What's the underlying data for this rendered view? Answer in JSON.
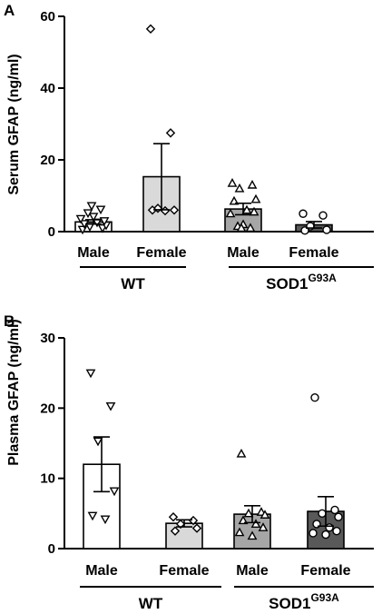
{
  "chart_data": [
    {
      "panel": "A",
      "type": "bar",
      "ylabel": "Serum GFAP (ng/ml)",
      "ylim": [
        0,
        60
      ],
      "yticks": [
        "0",
        "20",
        "40",
        "60"
      ],
      "categories": [
        "Male",
        "Female",
        "Male",
        "Female"
      ],
      "groups": [
        {
          "label": "WT",
          "label_sup": ""
        },
        {
          "label": "SOD1",
          "label_sup": "G93A"
        }
      ],
      "bars": [
        {
          "category": "Male",
          "group": "WT",
          "mean": 2.7,
          "sem": 0.6,
          "fill": "#ffffff",
          "marker": "triangle-down",
          "points": [
            0.6,
            1.0,
            1.4,
            1.8,
            2.2,
            2.6,
            3.0,
            3.6,
            4.2,
            5.2,
            6.2,
            7.2
          ]
        },
        {
          "category": "Female",
          "group": "WT",
          "mean": 15.3,
          "sem": 9.2,
          "fill": "#d9d9d9",
          "marker": "diamond",
          "points": [
            56.5,
            27.5,
            6.5,
            6.0,
            6.0,
            5.8
          ]
        },
        {
          "category": "Male",
          "group": "SOD1G93A",
          "mean": 6.3,
          "sem": 1.6,
          "fill": "#a6a6a6",
          "marker": "triangle-up",
          "points": [
            13.5,
            13.0,
            12.0,
            9.0,
            8.5,
            6.0,
            5.5,
            5.0,
            2.0,
            1.5,
            1.0,
            1.0
          ]
        },
        {
          "category": "Female",
          "group": "SOD1G93A",
          "mean": 1.9,
          "sem": 0.9,
          "fill": "#595959",
          "marker": "circle",
          "points": [
            5.0,
            4.5,
            1.5,
            0.5,
            0.3
          ]
        }
      ]
    },
    {
      "panel": "B",
      "type": "bar",
      "ylabel": "Plasma GFAP (ng/ml)",
      "ylim": [
        0,
        30
      ],
      "yticks": [
        "0",
        "10",
        "20",
        "30"
      ],
      "categories": [
        "Male",
        "Female",
        "Male",
        "Female"
      ],
      "groups": [
        {
          "label": "WT",
          "label_sup": ""
        },
        {
          "label": "SOD1",
          "label_sup": "G93A"
        }
      ],
      "bars": [
        {
          "category": "Male",
          "group": "WT",
          "mean": 12.0,
          "sem": 3.9,
          "fill": "#ffffff",
          "marker": "triangle-down",
          "points": [
            25.0,
            20.3,
            15.3,
            8.2,
            4.7,
            4.2
          ]
        },
        {
          "category": "Female",
          "group": "WT",
          "mean": 3.6,
          "sem": 0.5,
          "fill": "#d9d9d9",
          "marker": "diamond",
          "points": [
            4.5,
            4.0,
            3.5,
            2.9,
            2.5
          ]
        },
        {
          "category": "Male",
          "group": "SOD1G93A",
          "mean": 4.9,
          "sem": 1.2,
          "fill": "#a6a6a6",
          "marker": "triangle-up",
          "points": [
            13.5,
            5.2,
            5.0,
            4.8,
            4.0,
            3.5,
            3.0,
            2.3,
            1.8
          ]
        },
        {
          "category": "Female",
          "group": "SOD1G93A",
          "mean": 5.3,
          "sem": 2.1,
          "fill": "#595959",
          "marker": "circle",
          "points": [
            21.5,
            5.5,
            5.0,
            4.5,
            3.5,
            3.0,
            2.5,
            2.2,
            2.0
          ]
        }
      ]
    }
  ]
}
